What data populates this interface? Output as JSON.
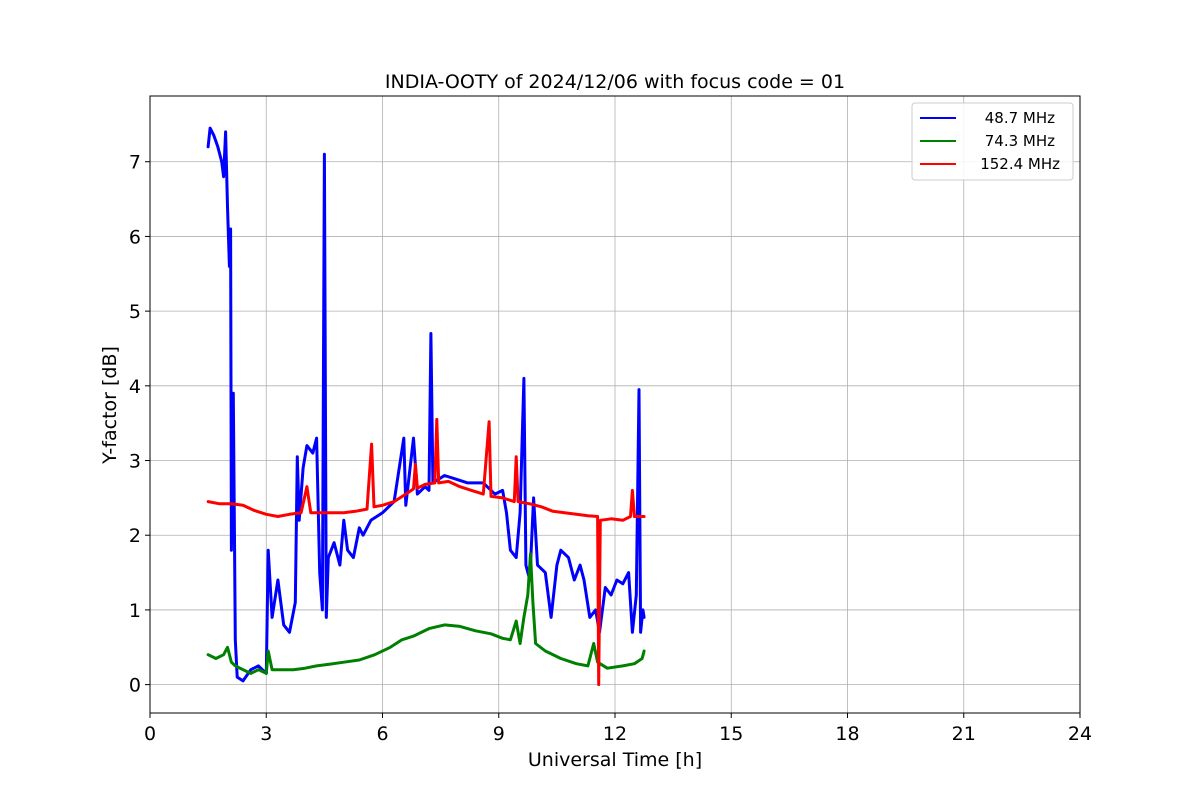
{
  "chart_data": {
    "type": "line",
    "title": "INDIA-OOTY of 2024/12/06 with focus code = 01",
    "xlabel": "Universal Time [h]",
    "ylabel": "Y-factor [dB]",
    "xlim": [
      0,
      24
    ],
    "ylim": [
      -0.38,
      7.88
    ],
    "xticks": [
      0,
      3,
      6,
      9,
      12,
      15,
      18,
      21,
      24
    ],
    "yticks": [
      0,
      1,
      2,
      3,
      4,
      5,
      6,
      7
    ],
    "grid": true,
    "legend_position": "top-right",
    "series": [
      {
        "name": "48.7 MHz",
        "color": "#0000ff",
        "points": [
          [
            1.5,
            7.2
          ],
          [
            1.55,
            7.45
          ],
          [
            1.65,
            7.35
          ],
          [
            1.75,
            7.2
          ],
          [
            1.85,
            7.0
          ],
          [
            1.9,
            6.8
          ],
          [
            1.95,
            7.4
          ],
          [
            2.0,
            6.4
          ],
          [
            2.05,
            5.6
          ],
          [
            2.08,
            6.1
          ],
          [
            2.1,
            1.8
          ],
          [
            2.15,
            3.9
          ],
          [
            2.2,
            0.6
          ],
          [
            2.25,
            0.1
          ],
          [
            2.4,
            0.05
          ],
          [
            2.6,
            0.2
          ],
          [
            2.8,
            0.25
          ],
          [
            3.0,
            0.15
          ],
          [
            3.05,
            1.8
          ],
          [
            3.15,
            0.9
          ],
          [
            3.3,
            1.4
          ],
          [
            3.45,
            0.8
          ],
          [
            3.6,
            0.7
          ],
          [
            3.75,
            1.1
          ],
          [
            3.8,
            3.05
          ],
          [
            3.85,
            2.2
          ],
          [
            3.95,
            2.9
          ],
          [
            4.05,
            3.2
          ],
          [
            4.2,
            3.1
          ],
          [
            4.3,
            3.3
          ],
          [
            4.38,
            1.5
          ],
          [
            4.45,
            1.0
          ],
          [
            4.5,
            7.1
          ],
          [
            4.55,
            0.9
          ],
          [
            4.6,
            1.7
          ],
          [
            4.75,
            1.9
          ],
          [
            4.9,
            1.6
          ],
          [
            5.0,
            2.2
          ],
          [
            5.1,
            1.8
          ],
          [
            5.25,
            1.7
          ],
          [
            5.4,
            2.1
          ],
          [
            5.5,
            2.0
          ],
          [
            5.7,
            2.2
          ],
          [
            6.0,
            2.3
          ],
          [
            6.3,
            2.45
          ],
          [
            6.55,
            3.3
          ],
          [
            6.6,
            2.4
          ],
          [
            6.8,
            3.3
          ],
          [
            6.9,
            2.55
          ],
          [
            7.1,
            2.65
          ],
          [
            7.2,
            2.6
          ],
          [
            7.25,
            4.7
          ],
          [
            7.3,
            2.7
          ],
          [
            7.6,
            2.8
          ],
          [
            7.9,
            2.75
          ],
          [
            8.2,
            2.7
          ],
          [
            8.6,
            2.7
          ],
          [
            8.9,
            2.55
          ],
          [
            9.1,
            2.6
          ],
          [
            9.2,
            2.3
          ],
          [
            9.3,
            1.8
          ],
          [
            9.45,
            1.7
          ],
          [
            9.55,
            2.3
          ],
          [
            9.65,
            4.1
          ],
          [
            9.7,
            1.6
          ],
          [
            9.8,
            1.4
          ],
          [
            9.9,
            2.5
          ],
          [
            10.0,
            1.6
          ],
          [
            10.2,
            1.5
          ],
          [
            10.35,
            0.9
          ],
          [
            10.5,
            1.6
          ],
          [
            10.6,
            1.8
          ],
          [
            10.8,
            1.7
          ],
          [
            10.95,
            1.4
          ],
          [
            11.1,
            1.6
          ],
          [
            11.2,
            1.4
          ],
          [
            11.35,
            0.9
          ],
          [
            11.5,
            1.0
          ],
          [
            11.6,
            0.7
          ],
          [
            11.75,
            1.3
          ],
          [
            11.9,
            1.2
          ],
          [
            12.05,
            1.4
          ],
          [
            12.2,
            1.35
          ],
          [
            12.35,
            1.5
          ],
          [
            12.45,
            0.7
          ],
          [
            12.55,
            1.2
          ],
          [
            12.62,
            3.95
          ],
          [
            12.66,
            0.7
          ],
          [
            12.72,
            1.0
          ],
          [
            12.75,
            0.9
          ]
        ]
      },
      {
        "name": "74.3 MHz",
        "color": "#008000",
        "points": [
          [
            1.5,
            0.4
          ],
          [
            1.7,
            0.35
          ],
          [
            1.9,
            0.4
          ],
          [
            2.0,
            0.5
          ],
          [
            2.1,
            0.3
          ],
          [
            2.2,
            0.25
          ],
          [
            2.4,
            0.2
          ],
          [
            2.6,
            0.15
          ],
          [
            2.8,
            0.2
          ],
          [
            3.0,
            0.15
          ],
          [
            3.05,
            0.45
          ],
          [
            3.15,
            0.2
          ],
          [
            3.4,
            0.2
          ],
          [
            3.7,
            0.2
          ],
          [
            4.0,
            0.22
          ],
          [
            4.3,
            0.25
          ],
          [
            4.6,
            0.27
          ],
          [
            5.0,
            0.3
          ],
          [
            5.4,
            0.33
          ],
          [
            5.8,
            0.4
          ],
          [
            6.2,
            0.5
          ],
          [
            6.5,
            0.6
          ],
          [
            6.8,
            0.65
          ],
          [
            7.2,
            0.75
          ],
          [
            7.6,
            0.8
          ],
          [
            8.0,
            0.78
          ],
          [
            8.4,
            0.72
          ],
          [
            8.8,
            0.68
          ],
          [
            9.1,
            0.62
          ],
          [
            9.3,
            0.6
          ],
          [
            9.45,
            0.85
          ],
          [
            9.55,
            0.55
          ],
          [
            9.65,
            0.9
          ],
          [
            9.75,
            1.2
          ],
          [
            9.82,
            1.75
          ],
          [
            9.88,
            1.1
          ],
          [
            9.95,
            0.55
          ],
          [
            10.2,
            0.45
          ],
          [
            10.6,
            0.35
          ],
          [
            11.0,
            0.28
          ],
          [
            11.3,
            0.25
          ],
          [
            11.45,
            0.55
          ],
          [
            11.55,
            0.3
          ],
          [
            11.8,
            0.22
          ],
          [
            12.2,
            0.25
          ],
          [
            12.5,
            0.28
          ],
          [
            12.7,
            0.35
          ],
          [
            12.75,
            0.45
          ]
        ]
      },
      {
        "name": "152.4 MHz",
        "color": "#ff0000",
        "points": [
          [
            1.5,
            2.45
          ],
          [
            1.8,
            2.42
          ],
          [
            2.1,
            2.42
          ],
          [
            2.4,
            2.4
          ],
          [
            2.7,
            2.33
          ],
          [
            3.0,
            2.28
          ],
          [
            3.3,
            2.25
          ],
          [
            3.6,
            2.28
          ],
          [
            3.9,
            2.3
          ],
          [
            4.05,
            2.65
          ],
          [
            4.15,
            2.3
          ],
          [
            4.4,
            2.3
          ],
          [
            4.7,
            2.3
          ],
          [
            5.0,
            2.3
          ],
          [
            5.3,
            2.32
          ],
          [
            5.6,
            2.35
          ],
          [
            5.72,
            3.22
          ],
          [
            5.78,
            2.38
          ],
          [
            6.0,
            2.4
          ],
          [
            6.3,
            2.45
          ],
          [
            6.6,
            2.55
          ],
          [
            6.8,
            2.62
          ],
          [
            6.85,
            2.95
          ],
          [
            6.9,
            2.63
          ],
          [
            7.1,
            2.68
          ],
          [
            7.35,
            2.7
          ],
          [
            7.4,
            3.55
          ],
          [
            7.45,
            2.7
          ],
          [
            7.7,
            2.72
          ],
          [
            8.0,
            2.65
          ],
          [
            8.3,
            2.6
          ],
          [
            8.6,
            2.55
          ],
          [
            8.75,
            3.52
          ],
          [
            8.8,
            2.52
          ],
          [
            9.1,
            2.5
          ],
          [
            9.4,
            2.45
          ],
          [
            9.45,
            3.05
          ],
          [
            9.5,
            2.45
          ],
          [
            9.8,
            2.42
          ],
          [
            10.1,
            2.38
          ],
          [
            10.4,
            2.32
          ],
          [
            10.7,
            2.3
          ],
          [
            11.0,
            2.28
          ],
          [
            11.3,
            2.26
          ],
          [
            11.55,
            2.25
          ],
          [
            11.58,
            0.0
          ],
          [
            11.62,
            2.2
          ],
          [
            11.9,
            2.22
          ],
          [
            12.2,
            2.2
          ],
          [
            12.4,
            2.25
          ],
          [
            12.45,
            2.6
          ],
          [
            12.5,
            2.25
          ],
          [
            12.75,
            2.25
          ]
        ]
      }
    ]
  }
}
